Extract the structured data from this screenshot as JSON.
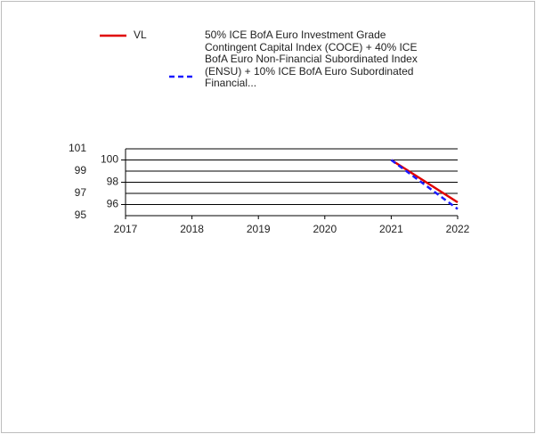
{
  "chart_data": {
    "type": "line",
    "x": [
      2021,
      2022
    ],
    "series": [
      {
        "name": "VL",
        "color": "#e00000",
        "values": [
          100,
          96.2
        ]
      },
      {
        "name": "50% ICE BofA Euro Investment Grade Contingent Capital Index (COCE) + 40% ICE BofA Euro Non-Financial Subordinated Index (ENSU) + 10% ICE BofA Euro Subordinated Financial...",
        "color": "#1a1aff",
        "values": [
          100,
          95.6
        ],
        "dashed": true
      }
    ],
    "xlim": [
      2017,
      2022
    ],
    "xticks": [
      2017,
      2018,
      2019,
      2020,
      2021,
      2022
    ],
    "ylim": [
      95,
      101
    ],
    "yticks": [
      96,
      98,
      100
    ],
    "y2lim": [
      95,
      101
    ],
    "y2ticks": [
      95,
      97,
      99,
      101
    ],
    "grid": true
  }
}
